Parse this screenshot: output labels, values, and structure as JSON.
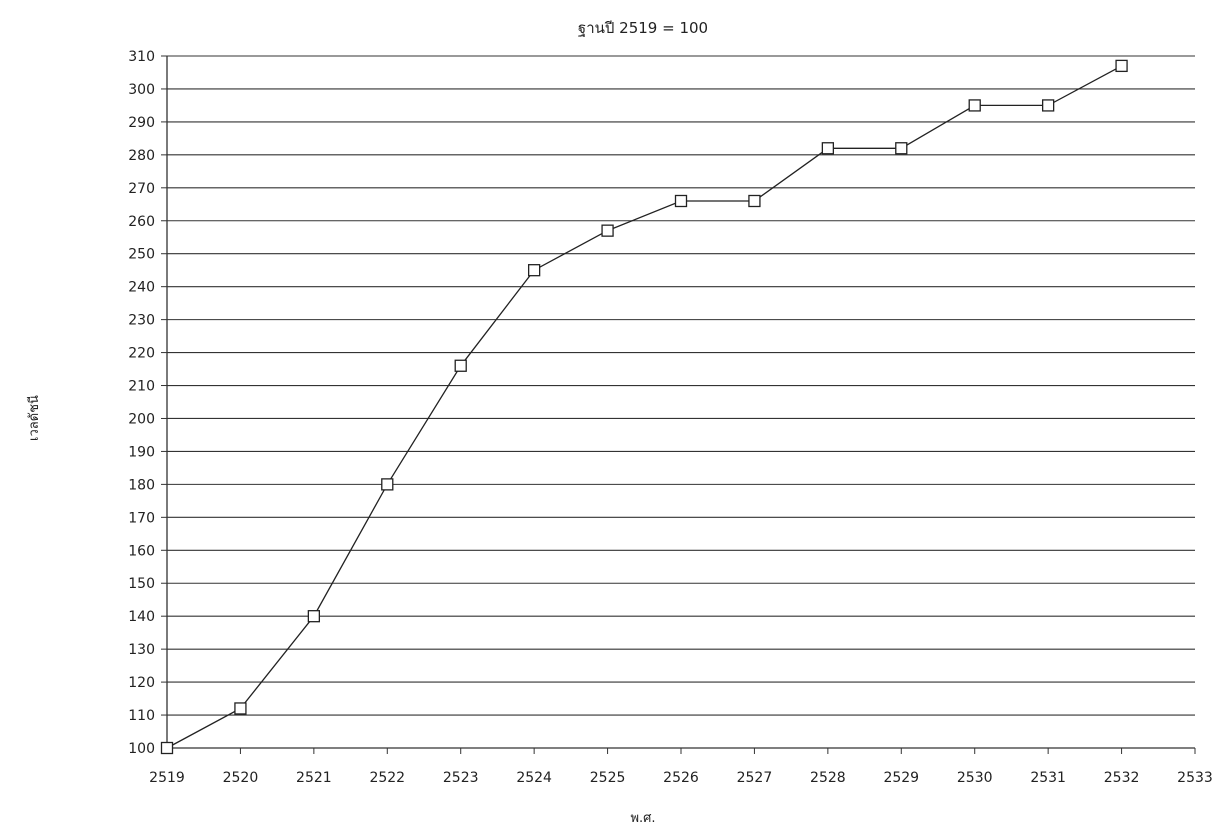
{
  "chart_data": {
    "type": "line",
    "title": "ฐานปี 2519 = 100",
    "xlabel": "พ.ศ.",
    "ylabel": "เวลดัชนี",
    "x": [
      2519,
      2520,
      2521,
      2522,
      2523,
      2524,
      2525,
      2526,
      2527,
      2528,
      2529,
      2530,
      2531,
      2532
    ],
    "series": [
      {
        "values": [
          100,
          112,
          140,
          180,
          216,
          245,
          257,
          266,
          266,
          282,
          282,
          295,
          295,
          307
        ]
      }
    ],
    "xlim": [
      2519,
      2533
    ],
    "ylim": [
      100,
      310
    ],
    "xticks": [
      2519,
      2520,
      2521,
      2522,
      2523,
      2524,
      2525,
      2526,
      2527,
      2528,
      2529,
      2530,
      2531,
      2532,
      2533
    ],
    "yticks": [
      100,
      110,
      120,
      130,
      140,
      150,
      160,
      170,
      180,
      190,
      200,
      210,
      220,
      230,
      240,
      250,
      260,
      270,
      280,
      290,
      300,
      310
    ],
    "grid": "horizontal",
    "marker": "square",
    "colors": {
      "line": "#222222",
      "grid": "#333333"
    }
  }
}
